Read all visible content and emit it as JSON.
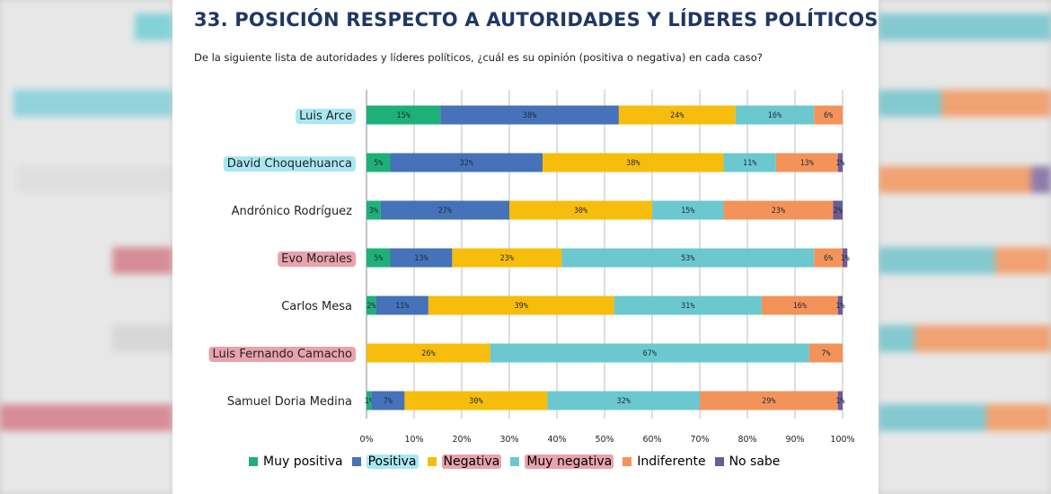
{
  "title": "33. POSICIÓN RESPECTO A AUTORIDADES Y LÍDERES POLÍTICOS",
  "subtitle": "De la siguiente lista de autoridades y líderes políticos, ¿cuál es su opinión (positiva o negativa) en cada caso?",
  "colors": {
    "muy_positiva": "#1fb07a",
    "positiva": "#4572b8",
    "negativa": "#f7bd0c",
    "muy_negativa": "#6bc8cf",
    "indiferente": "#f3935a",
    "no_sabe": "#6c5b96",
    "highlight_blue": "#a9e8f2",
    "highlight_red": "#e8a3ad"
  },
  "chart_data": {
    "type": "bar",
    "orientation": "horizontal-stacked-100",
    "categories": [
      "Luis Arce",
      "David Choquehuanca",
      "Andrónico Rodríguez",
      "Evo Morales",
      "Carlos Mesa",
      "Luis Fernando Camacho",
      "Samuel Doria Medina"
    ],
    "category_highlight": [
      "blue",
      "blue",
      "none",
      "red",
      "none",
      "red",
      "none"
    ],
    "xlim": [
      0,
      100
    ],
    "xticks": [
      "0%",
      "10%",
      "20%",
      "30%",
      "40%",
      "50%",
      "60%",
      "70%",
      "80%",
      "90%",
      "100%"
    ],
    "grid": true,
    "legend_position": "bottom",
    "series": [
      {
        "name": "Muy positiva",
        "key": "muy_positiva",
        "highlight": "none",
        "values": [
          15.5,
          5,
          3,
          5,
          2,
          0,
          1
        ],
        "labels": [
          "15%",
          "5%",
          "3%",
          "5%",
          "2%",
          "",
          "1%"
        ]
      },
      {
        "name": "Positiva",
        "key": "positiva",
        "highlight": "blue",
        "values": [
          37.5,
          32,
          27,
          13,
          11,
          0,
          7
        ],
        "labels": [
          "38%",
          "32%",
          "27%",
          "13%",
          "11%",
          "",
          "7%"
        ]
      },
      {
        "name": "Negativa",
        "key": "negativa",
        "highlight": "red",
        "values": [
          24.5,
          38,
          30,
          23,
          39,
          26,
          30
        ],
        "labels": [
          "24%",
          "38%",
          "30%",
          "23%",
          "39%",
          "26%",
          "30%"
        ]
      },
      {
        "name": "Muy negativa",
        "key": "muy_negativa",
        "highlight": "red",
        "values": [
          16.5,
          11,
          15,
          53,
          31,
          67,
          32
        ],
        "labels": [
          "16%",
          "11%",
          "15%",
          "53%",
          "31%",
          "67%",
          "32%"
        ]
      },
      {
        "name": "Indiferente",
        "key": "indiferente",
        "highlight": "none",
        "values": [
          6,
          13,
          23,
          6,
          16,
          7,
          29
        ],
        "labels": [
          "6%",
          "13%",
          "23%",
          "6%",
          "16%",
          "7%",
          "29%"
        ]
      },
      {
        "name": "No sabe",
        "key": "no_sabe",
        "highlight": "none",
        "values": [
          0,
          1,
          2,
          1,
          1,
          0,
          1
        ],
        "labels": [
          "",
          "1%",
          "2%",
          "1%",
          "1%",
          "",
          "1%"
        ]
      }
    ]
  }
}
